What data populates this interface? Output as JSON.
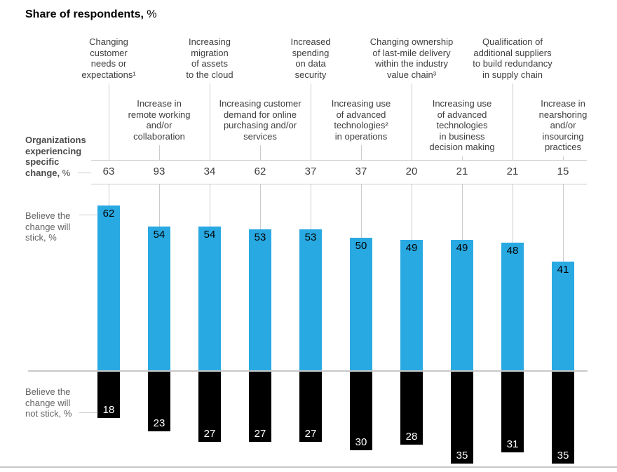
{
  "title": {
    "main": "Share of respondents,",
    "unit": " %"
  },
  "row_labels": {
    "experiencing": {
      "lines": [
        "Organizations",
        "experiencing",
        "specific"
      ],
      "last_bold": "change,",
      "unit": " %"
    },
    "stick": {
      "lines": [
        "Believe the",
        "change will",
        "stick, %"
      ]
    },
    "not_stick": {
      "lines": [
        "Believe the",
        "change will",
        "not stick, %"
      ]
    }
  },
  "header_columns": [
    {
      "row": 1,
      "lines": [
        "Changing",
        "customer",
        "needs or",
        "expectations¹"
      ]
    },
    {
      "row": 2,
      "lines": [
        "Increase in",
        "remote working",
        "and/or",
        "collaboration"
      ]
    },
    {
      "row": 1,
      "lines": [
        "Increasing",
        "migration",
        "of assets",
        "to the cloud"
      ]
    },
    {
      "row": 2,
      "lines": [
        "Increasing customer",
        "demand for online",
        "purchasing and/or",
        "services"
      ]
    },
    {
      "row": 1,
      "lines": [
        "Increased",
        "spending",
        "on data",
        "security"
      ]
    },
    {
      "row": 2,
      "lines": [
        "Increasing use",
        "of advanced",
        "technologies²",
        "in operations"
      ]
    },
    {
      "row": 1,
      "lines": [
        "Changing ownership",
        "of last-mile delivery",
        "within the industry",
        "value chain³"
      ]
    },
    {
      "row": 2,
      "lines": [
        "Increasing use",
        "of advanced",
        "technologies",
        "in business",
        "decision making"
      ]
    },
    {
      "row": 1,
      "lines": [
        "Qualification of",
        "additional suppliers",
        "to build redundancy",
        "in supply chain"
      ]
    },
    {
      "row": 2,
      "lines": [
        "Increase in",
        "nearshoring",
        "and/or",
        "insourcing",
        "practices"
      ]
    }
  ],
  "chart_data": {
    "type": "bar",
    "orientation": "vertical-diverging",
    "title": "Share of respondents, %",
    "categories": [
      "Changing customer needs or expectations¹",
      "Increase in remote working and/or collaboration",
      "Increasing migration of assets to the cloud",
      "Increasing customer demand for online purchasing and/or services",
      "Increased spending on data security",
      "Increasing use of advanced technologies² in operations",
      "Changing ownership of last-mile delivery within the industry value chain³",
      "Increasing use of advanced technologies in business decision making",
      "Qualification of additional suppliers to build redundancy in supply chain",
      "Increase in nearshoring and/or insourcing practices"
    ],
    "series": [
      {
        "name": "Organizations experiencing specific change, %",
        "values": [
          63,
          93,
          34,
          62,
          37,
          37,
          20,
          21,
          21,
          15
        ]
      },
      {
        "name": "Believe the change will stick, %",
        "values": [
          62,
          54,
          54,
          53,
          53,
          50,
          49,
          49,
          48,
          41
        ],
        "color": "#29a9e2",
        "direction": "up"
      },
      {
        "name": "Believe the change will not stick, %",
        "values": [
          18,
          23,
          27,
          27,
          27,
          30,
          28,
          35,
          31,
          35
        ],
        "color": "#000000",
        "direction": "down"
      }
    ],
    "legend_position": "left",
    "grid": "off",
    "value_labels": "on"
  },
  "colors": {
    "stick_bar": "#29a9e2",
    "not_stick_bar": "#000000",
    "grid_line": "#cccccc",
    "header_text": "#3d3d3d",
    "muted_label": "#636363",
    "value_text": "#3c3c3c"
  }
}
